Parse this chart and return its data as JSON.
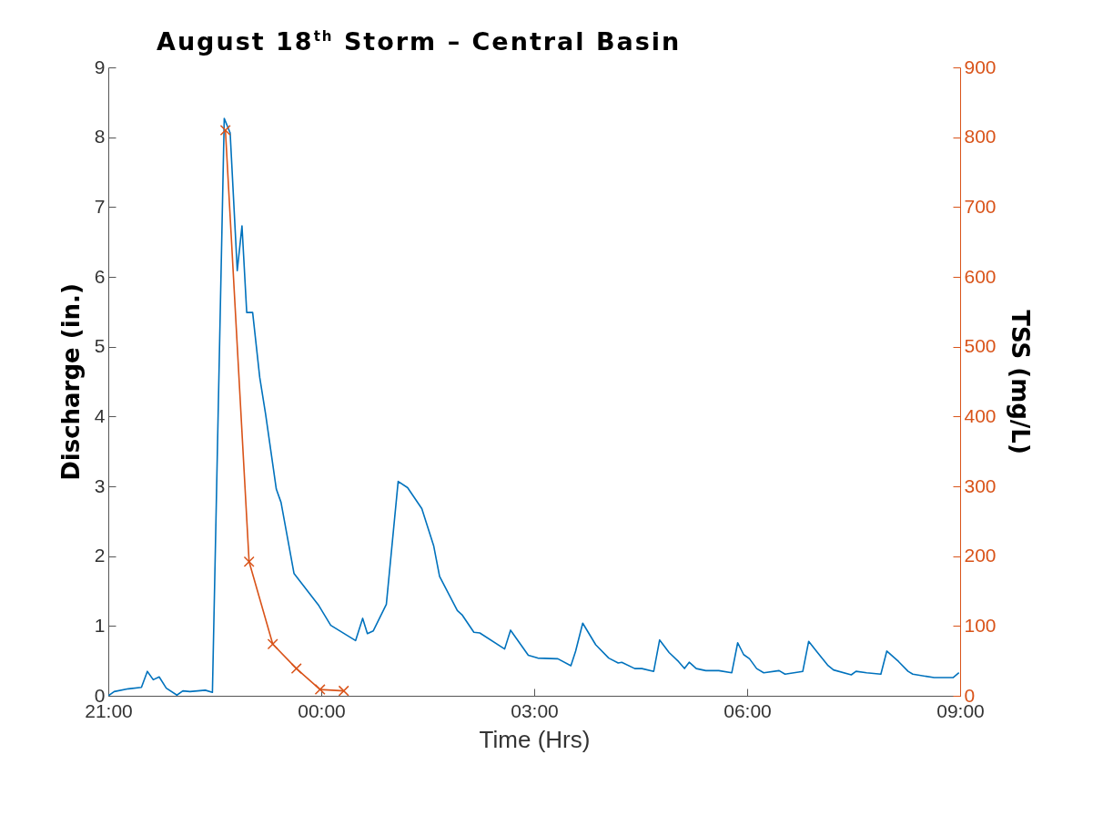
{
  "chart_data": {
    "type": "line",
    "title": "August 18$^{th}$ Storm – Central Basin",
    "xlabel": "Time (Hrs)",
    "ylabel": "Discharge (in.)",
    "y2label": "TSS (mg/L)",
    "xlim": [
      "--08-18T21:00",
      "--08-19T09:00"
    ],
    "xticks": [
      {
        "value": "--08-18T21:00",
        "label": "21:00"
      },
      {
        "value": "--08-19T00:00",
        "label": "00:00"
      },
      {
        "value": "--08-19T03:00",
        "label": "03:00"
      },
      {
        "value": "--08-19T06:00",
        "label": "06:00"
      },
      {
        "value": "--08-19T09:00",
        "label": "09:00"
      }
    ],
    "ylim": [
      0,
      9
    ],
    "yticks": [
      0,
      1,
      2,
      3,
      4,
      5,
      6,
      7,
      8,
      9
    ],
    "y2lim": [
      0,
      900
    ],
    "y2ticks": [
      0,
      100,
      200,
      300,
      400,
      500,
      600,
      700,
      800,
      900
    ],
    "grid": false,
    "legend": false,
    "series": [
      {
        "color": "#0072bd",
        "marker": "none",
        "x": [
          "--08-18T21:00",
          "--08-18T21:05",
          "--08-18T21:17",
          "--08-18T21:28",
          "--08-18T21:33",
          "--08-18T21:38",
          "--08-18T21:43",
          "--08-18T21:49",
          "--08-18T21:58",
          "--08-18T22:03",
          "--08-18T22:09",
          "--08-18T22:22",
          "--08-18T22:28",
          "--08-18T22:38",
          "--08-18T22:43",
          "--08-18T22:49",
          "--08-18T22:53",
          "--08-18T22:57",
          "--08-18T23:02",
          "--08-18T23:08",
          "--08-18T23:13",
          "--08-18T23:22",
          "--08-18T23:26",
          "--08-18T23:37",
          "--08-18T23:58",
          "--08-19T00:08",
          "--08-19T00:29",
          "--08-19T00:35",
          "--08-19T00:39",
          "--08-19T00:44",
          "--08-19T00:55",
          "--08-19T01:05",
          "--08-19T01:13",
          "--08-19T01:25",
          "--08-19T01:35",
          "--08-19T01:40",
          "--08-19T01:55",
          "--08-19T01:59",
          "--08-19T02:09",
          "--08-19T02:14",
          "--08-19T02:35",
          "--08-19T02:40",
          "--08-19T02:55",
          "--08-19T03:03",
          "--08-19T03:20",
          "--08-19T03:31",
          "--08-19T03:35",
          "--08-19T03:41",
          "--08-19T03:52",
          "--08-19T04:03",
          "--08-19T04:11",
          "--08-19T04:14",
          "--08-19T04:25",
          "--08-19T04:31",
          "--08-19T04:41",
          "--08-19T04:46",
          "--08-19T04:54",
          "--08-19T05:02",
          "--08-19T05:07",
          "--08-19T05:11",
          "--08-19T05:17",
          "--08-19T05:25",
          "--08-19T05:36",
          "--08-19T05:47",
          "--08-19T05:52",
          "--08-19T05:57",
          "--08-19T06:02",
          "--08-19T06:08",
          "--08-19T06:14",
          "--08-19T06:27",
          "--08-19T06:32",
          "--08-19T06:47",
          "--08-19T06:52",
          "--08-19T06:59",
          "--08-19T07:08",
          "--08-19T07:13",
          "--08-19T07:28",
          "--08-19T07:32",
          "--08-19T07:41",
          "--08-19T07:53",
          "--08-19T07:58",
          "--08-19T08:08",
          "--08-19T08:16",
          "--08-19T08:20",
          "--08-19T08:38",
          "--08-19T08:54",
          "--08-19T08:59"
        ],
        "values": [
          0,
          0.06,
          0.1,
          0.12,
          0.35,
          0.23,
          0.27,
          0.11,
          0.01,
          0.07,
          0.06,
          0.08,
          0.05,
          8.27,
          8.06,
          6.09,
          6.73,
          5.49,
          5.49,
          4.56,
          4.03,
          2.96,
          2.77,
          1.75,
          1.29,
          1.01,
          0.79,
          1.11,
          0.89,
          0.93,
          1.31,
          3.07,
          2.98,
          2.68,
          2.15,
          1.71,
          1.22,
          1.16,
          0.91,
          0.9,
          0.67,
          0.94,
          0.58,
          0.54,
          0.53,
          0.43,
          0.64,
          1.04,
          0.73,
          0.54,
          0.47,
          0.48,
          0.39,
          0.39,
          0.35,
          0.8,
          0.62,
          0.49,
          0.39,
          0.48,
          0.39,
          0.36,
          0.36,
          0.33,
          0.76,
          0.59,
          0.53,
          0.39,
          0.33,
          0.36,
          0.31,
          0.35,
          0.78,
          0.63,
          0.44,
          0.37,
          0.3,
          0.35,
          0.33,
          0.31,
          0.64,
          0.49,
          0.35,
          0.31,
          0.26,
          0.26,
          0.33
        ]
      },
      {
        "color": "#d95319",
        "marker": "cross",
        "axis": "y2",
        "x": [
          "--08-18T22:39",
          "--08-18T22:59",
          "--08-18T23:19",
          "--08-18T23:39",
          "--08-18T23:59",
          "--08-19T00:19"
        ],
        "values": [
          810,
          192,
          74,
          39,
          9,
          7
        ]
      }
    ]
  }
}
